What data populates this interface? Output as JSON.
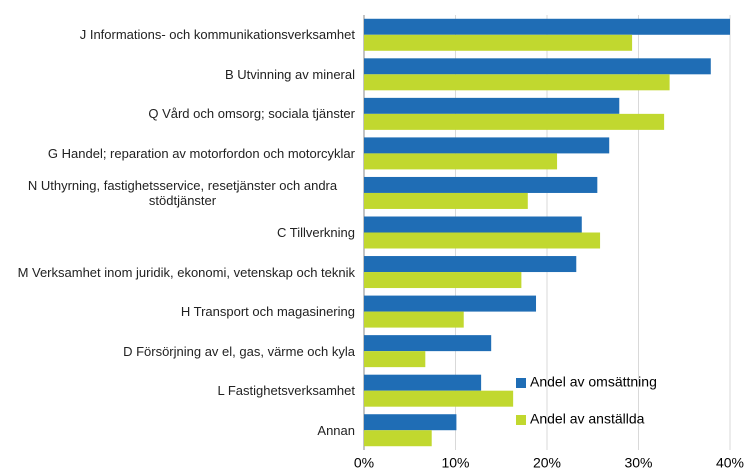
{
  "chart_data": {
    "type": "bar",
    "orientation": "horizontal",
    "categories": [
      "J Informations- och kommunikationsverksamhet",
      "B Utvinning av mineral",
      "Q Vård och omsorg; sociala tjänster",
      "G Handel; reparation av motorfordon och motorcyklar",
      "N Uthyrning, fastighetsservice, resetjänster och andra stödtjänster",
      "C Tillverkning",
      "M Verksamhet inom juridik, ekonomi, vetenskap och teknik",
      "H Transport och magasinering",
      "D Försörjning av el, gas, värme och kyla",
      "L Fastighetsverksamhet",
      "Annan"
    ],
    "series": [
      {
        "name": "Andel av omsättning",
        "color": "#1f6db5",
        "values": [
          40,
          37.9,
          27.9,
          26.8,
          25.5,
          23.8,
          23.2,
          18.8,
          13.9,
          12.8,
          10.1
        ]
      },
      {
        "name": "Andel av anställda",
        "color": "#c1d82f",
        "values": [
          29.3,
          33.4,
          32.8,
          21.1,
          17.9,
          25.8,
          17.2,
          10.9,
          6.7,
          16.3,
          7.4
        ]
      }
    ],
    "xlim": [
      0,
      40
    ],
    "xticks": [
      {
        "value": 0,
        "label": "0%"
      },
      {
        "value": 10,
        "label": "10%"
      },
      {
        "value": 20,
        "label": "20%"
      },
      {
        "value": 30,
        "label": "30%"
      },
      {
        "value": 40,
        "label": "40%"
      }
    ],
    "grid": true,
    "legend": "lower right"
  }
}
